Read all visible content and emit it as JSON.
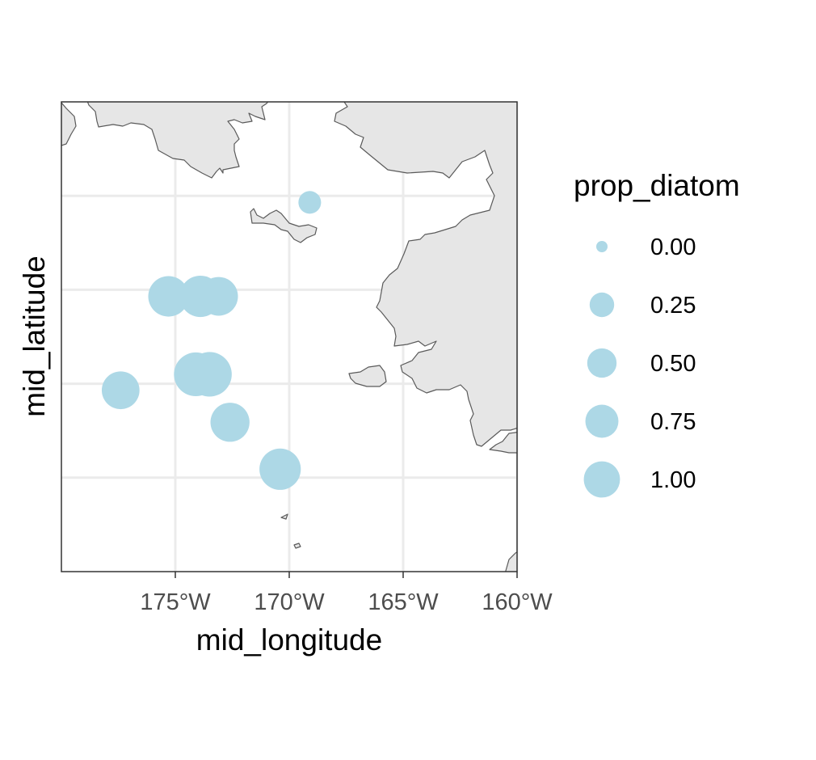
{
  "chart_data": {
    "type": "scatter",
    "title": "",
    "xlabel": "mid_longitude",
    "ylabel": "mid_latitude",
    "xlim": [
      -180,
      -160
    ],
    "ylim": [
      -5,
      45
    ],
    "x_ticks": [
      -175,
      -170,
      -165,
      -160
    ],
    "x_tick_labels": [
      "175°W",
      "170°W",
      "165°W",
      "160°W"
    ],
    "y_gridlines": [
      5,
      15,
      25,
      35
    ],
    "grid": true,
    "colors": {
      "point": "#add8e6",
      "land": "#e6e6e6",
      "coast": "#5a5a5a",
      "grid": "#ebebeb",
      "panel_border": "#333333"
    },
    "size_variable": "prop_diatom",
    "legend": {
      "title": "prop_diatom",
      "placement": "right",
      "entries": [
        {
          "label": "0.00",
          "value": 0.0
        },
        {
          "label": "0.25",
          "value": 0.25
        },
        {
          "label": "0.50",
          "value": 0.5
        },
        {
          "label": "0.75",
          "value": 0.75
        },
        {
          "label": "1.00",
          "value": 1.0
        }
      ]
    },
    "points": [
      {
        "lon": -169.1,
        "lat": 34.3,
        "prop_diatom": 0.05
      },
      {
        "lon": -175.3,
        "lat": 24.3,
        "prop_diatom": 0.7
      },
      {
        "lon": -173.9,
        "lat": 24.3,
        "prop_diatom": 0.75
      },
      {
        "lon": -173.1,
        "lat": 24.3,
        "prop_diatom": 0.6
      },
      {
        "lon": -174.1,
        "lat": 16.0,
        "prop_diatom": 0.9
      },
      {
        "lon": -173.5,
        "lat": 16.0,
        "prop_diatom": 0.95
      },
      {
        "lon": -177.4,
        "lat": 14.3,
        "prop_diatom": 0.55
      },
      {
        "lon": -172.6,
        "lat": 10.9,
        "prop_diatom": 0.62
      },
      {
        "lon": -170.4,
        "lat": 5.9,
        "prop_diatom": 0.75
      }
    ]
  }
}
